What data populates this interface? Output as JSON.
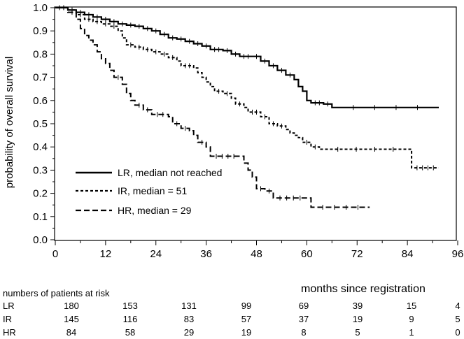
{
  "chart_data": {
    "type": "line",
    "step": true,
    "xlabel": "months since registration",
    "ylabel": "probability of overall survival",
    "xlim": [
      0,
      96
    ],
    "ylim": [
      0,
      1
    ],
    "xticks": [
      0,
      12,
      24,
      36,
      48,
      60,
      72,
      84,
      96
    ],
    "yticks": [
      "0.0",
      "0.1",
      "0.2",
      "0.3",
      "0.4",
      "0.5",
      "0.6",
      "0.7",
      "0.8",
      "0.9",
      "1.0"
    ],
    "grid": false,
    "legend_position": "bottom-left",
    "series": [
      {
        "name": "LR, median not reached",
        "style": "solid",
        "points": [
          [
            0,
            1.0
          ],
          [
            3,
            0.99
          ],
          [
            5,
            0.98
          ],
          [
            7,
            0.97
          ],
          [
            9,
            0.96
          ],
          [
            11,
            0.95
          ],
          [
            13,
            0.94
          ],
          [
            15,
            0.93
          ],
          [
            17,
            0.925
          ],
          [
            19,
            0.92
          ],
          [
            21,
            0.91
          ],
          [
            23,
            0.9
          ],
          [
            25,
            0.885
          ],
          [
            27,
            0.87
          ],
          [
            29,
            0.865
          ],
          [
            31,
            0.855
          ],
          [
            33,
            0.845
          ],
          [
            35,
            0.835
          ],
          [
            37,
            0.82
          ],
          [
            40,
            0.815
          ],
          [
            42,
            0.8
          ],
          [
            44,
            0.79
          ],
          [
            47,
            0.79
          ],
          [
            49,
            0.77
          ],
          [
            51,
            0.75
          ],
          [
            53,
            0.73
          ],
          [
            55,
            0.71
          ],
          [
            57,
            0.69
          ],
          [
            58,
            0.66
          ],
          [
            59,
            0.64
          ],
          [
            60,
            0.6
          ],
          [
            61,
            0.59
          ],
          [
            64,
            0.585
          ],
          [
            66,
            0.57
          ],
          [
            91.5,
            0.57
          ]
        ]
      },
      {
        "name": "IR, median = 51",
        "style": "dotted",
        "points": [
          [
            0,
            1.0
          ],
          [
            3,
            0.99
          ],
          [
            5,
            0.97
          ],
          [
            7,
            0.95
          ],
          [
            9,
            0.94
          ],
          [
            11,
            0.93
          ],
          [
            13,
            0.92
          ],
          [
            15,
            0.9
          ],
          [
            16,
            0.87
          ],
          [
            17,
            0.84
          ],
          [
            19,
            0.83
          ],
          [
            21,
            0.82
          ],
          [
            23,
            0.81
          ],
          [
            25,
            0.8
          ],
          [
            27,
            0.785
          ],
          [
            29,
            0.77
          ],
          [
            30,
            0.75
          ],
          [
            33,
            0.74
          ],
          [
            34,
            0.72
          ],
          [
            35,
            0.7
          ],
          [
            36,
            0.68
          ],
          [
            37,
            0.66
          ],
          [
            38,
            0.64
          ],
          [
            40,
            0.63
          ],
          [
            42,
            0.61
          ],
          [
            43,
            0.585
          ],
          [
            45,
            0.57
          ],
          [
            46,
            0.55
          ],
          [
            49,
            0.53
          ],
          [
            51,
            0.5
          ],
          [
            53,
            0.49
          ],
          [
            55,
            0.475
          ],
          [
            56,
            0.46
          ],
          [
            57,
            0.45
          ],
          [
            58,
            0.44
          ],
          [
            59,
            0.42
          ],
          [
            61,
            0.4
          ],
          [
            63,
            0.39
          ],
          [
            85,
            0.39
          ],
          [
            85,
            0.31
          ],
          [
            91.5,
            0.31
          ]
        ]
      },
      {
        "name": "HR, median =  29",
        "style": "dashed",
        "points": [
          [
            0,
            1.0
          ],
          [
            3,
            0.98
          ],
          [
            5,
            0.95
          ],
          [
            6,
            0.91
          ],
          [
            7,
            0.88
          ],
          [
            8,
            0.86
          ],
          [
            9,
            0.84
          ],
          [
            10,
            0.81
          ],
          [
            11,
            0.78
          ],
          [
            12,
            0.76
          ],
          [
            13,
            0.73
          ],
          [
            14,
            0.7
          ],
          [
            16,
            0.67
          ],
          [
            17,
            0.63
          ],
          [
            18,
            0.6
          ],
          [
            19,
            0.58
          ],
          [
            21,
            0.56
          ],
          [
            23,
            0.54
          ],
          [
            27,
            0.53
          ],
          [
            28,
            0.5
          ],
          [
            30,
            0.48
          ],
          [
            32,
            0.47
          ],
          [
            33,
            0.45
          ],
          [
            34,
            0.42
          ],
          [
            36,
            0.4
          ],
          [
            37,
            0.36
          ],
          [
            44,
            0.36
          ],
          [
            45,
            0.33
          ],
          [
            46,
            0.3
          ],
          [
            47,
            0.27
          ],
          [
            48,
            0.22
          ],
          [
            50,
            0.21
          ],
          [
            52,
            0.18
          ],
          [
            60,
            0.18
          ],
          [
            61,
            0.14
          ],
          [
            75,
            0.14
          ]
        ]
      }
    ]
  },
  "risk_table": {
    "title": "numbers of patients at risk",
    "times": [
      0,
      12,
      24,
      36,
      48,
      60,
      72,
      84
    ],
    "rows": [
      {
        "label": "LR",
        "values": [
          "180",
          "153",
          "131",
          "99",
          "69",
          "39",
          "15",
          "4"
        ]
      },
      {
        "label": "IR",
        "values": [
          "145",
          "116",
          "83",
          "57",
          "37",
          "19",
          "9",
          "5"
        ]
      },
      {
        "label": "HR",
        "values": [
          "84",
          "58",
          "29",
          "19",
          "8",
          "5",
          "1",
          "0"
        ]
      }
    ]
  }
}
